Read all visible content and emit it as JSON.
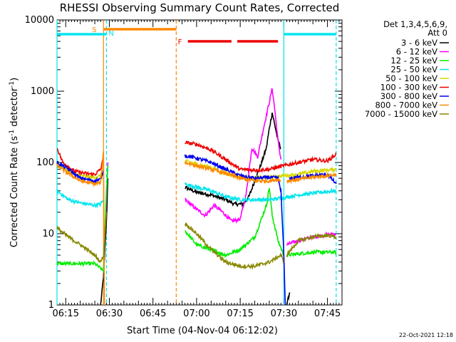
{
  "chart_data": {
    "type": "line",
    "title": "RHESSI Observing Summary Count Rates, Corrected",
    "xlabel": "Start Time (04-Nov-04 06:12:02)",
    "ylabel": "Corrected Count Rate (s",
    "ylabel_sup": "-1",
    "ylabel_mid": " detector",
    "ylabel_sup2": "-1",
    "ylabel_end": ")",
    "yscale": "log",
    "ylim": [
      1,
      10000
    ],
    "yticks": [
      {
        "v": 1,
        "label": "1"
      },
      {
        "v": 10,
        "label": "10"
      },
      {
        "v": 100,
        "label": "100"
      },
      {
        "v": 1000,
        "label": "1000"
      },
      {
        "v": 10000,
        "label": "10000"
      }
    ],
    "xlim": [
      "06:12",
      "07:50"
    ],
    "xticks": [
      "06:15",
      "06:30",
      "06:45",
      "07:00",
      "07:15",
      "07:30",
      "07:45"
    ],
    "timestamp": "22-Oct-2021 12:18",
    "legend": {
      "position": "right",
      "header": [
        "Det 1,3,4,5,6,9,",
        "Att 0"
      ],
      "entries": [
        {
          "label": "3 - 6 keV",
          "color": "#000000"
        },
        {
          "label": "6 - 12 keV",
          "color": "#ff00ff"
        },
        {
          "label": "12 - 25 keV",
          "color": "#00ee00"
        },
        {
          "label": "25 - 50 keV",
          "color": "#00e5ee"
        },
        {
          "label": "50 - 100 keV",
          "color": "#d8d800"
        },
        {
          "label": "100 - 300 keV",
          "color": "#ee0000"
        },
        {
          "label": "300 - 800 keV",
          "color": "#0000ee"
        },
        {
          "label": "800 - 7000 keV",
          "color": "#ff8800"
        },
        {
          "label": "7000 - 15000 keV",
          "color": "#888800"
        }
      ]
    },
    "flags": [
      {
        "label": "S",
        "color": "#ff8800",
        "segments": [
          [
            "06:28",
            "06:53"
          ]
        ]
      },
      {
        "label": "N",
        "color": "#00e5ee",
        "segments": [
          [
            "06:12",
            "06:29"
          ],
          [
            "07:30",
            "07:48"
          ]
        ]
      },
      {
        "label": "F",
        "color": "#ee0000",
        "segments": [
          [
            "06:57",
            "07:12"
          ],
          [
            "07:14",
            "07:28"
          ]
        ]
      }
    ],
    "markers": [
      {
        "t": "06:12",
        "color": "#00e5ee",
        "style": "solid"
      },
      {
        "t": "06:28",
        "color": "#ff8800",
        "style": "solid"
      },
      {
        "t": "06:29",
        "color": "#00e5ee",
        "style": "dashed"
      },
      {
        "t": "06:53",
        "color": "#ff8800",
        "style": "dashed"
      },
      {
        "t": "07:30",
        "color": "#00e5ee",
        "style": "solid"
      },
      {
        "t": "07:48",
        "color": "#00e5ee",
        "style": "dashed"
      }
    ],
    "series": [
      {
        "name": "3 - 6 keV",
        "color": "#000000",
        "segments": [
          [
            [
              "06:27",
              1
            ],
            [
              "06:28",
              2.5
            ],
            [
              "06:29",
              15
            ],
            [
              "06:29.5",
              60
            ]
          ],
          [
            [
              "06:56",
              45
            ],
            [
              "07:00",
              38
            ],
            [
              "07:05",
              35
            ],
            [
              "07:10",
              30
            ],
            [
              "07:13",
              26
            ],
            [
              "07:16",
              26
            ],
            [
              "07:18",
              33
            ],
            [
              "07:20",
              55
            ],
            [
              "07:22",
              90
            ],
            [
              "07:24",
              160
            ],
            [
              "07:25",
              300
            ],
            [
              "07:26",
              500
            ],
            [
              "07:27",
              320
            ],
            [
              "07:28",
              200
            ],
            [
              "07:29",
              160
            ]
          ],
          [
            [
              "07:31",
              1
            ],
            [
              "07:32",
              1.5
            ]
          ]
        ]
      },
      {
        "name": "6 - 12 keV",
        "color": "#ff00ff",
        "segments": [
          [
            [
              "06:28",
              3
            ],
            [
              "06:29",
              30
            ],
            [
              "06:29.5",
              100
            ]
          ],
          [
            [
              "06:56",
              30
            ],
            [
              "07:00",
              22
            ],
            [
              "07:03",
              18
            ],
            [
              "07:06",
              25
            ],
            [
              "07:09",
              20
            ],
            [
              "07:12",
              15
            ],
            [
              "07:15",
              16
            ],
            [
              "07:17",
              35
            ],
            [
              "07:19",
              160
            ],
            [
              "07:21",
              120
            ],
            [
              "07:23",
              300
            ],
            [
              "07:25",
              700
            ],
            [
              "07:26",
              1100
            ],
            [
              "07:27",
              500
            ],
            [
              "07:28",
              200
            ],
            [
              "07:29",
              110
            ]
          ],
          [
            [
              "07:31",
              7
            ],
            [
              "07:35",
              8
            ],
            [
              "07:40",
              9
            ],
            [
              "07:48",
              10
            ]
          ]
        ]
      },
      {
        "name": "12 - 25 keV",
        "color": "#00ee00",
        "segments": [
          [
            [
              "06:12",
              3.8
            ],
            [
              "06:20",
              3.8
            ],
            [
              "06:25",
              3.8
            ],
            [
              "06:28",
              3
            ],
            [
              "06:29",
              40
            ],
            [
              "06:29.5",
              90
            ]
          ],
          [
            [
              "06:56",
              11
            ],
            [
              "07:00",
              7
            ],
            [
              "07:05",
              6
            ],
            [
              "07:10",
              5
            ],
            [
              "07:15",
              6
            ],
            [
              "07:20",
              9
            ],
            [
              "07:24",
              25
            ],
            [
              "07:25",
              45
            ],
            [
              "07:26",
              18
            ],
            [
              "07:28",
              8
            ],
            [
              "07:30",
              5
            ]
          ],
          [
            [
              "07:31",
              5
            ],
            [
              "07:40",
              5.5
            ],
            [
              "07:48",
              5.5
            ]
          ]
        ]
      },
      {
        "name": "25 - 50 keV",
        "color": "#00e5ee",
        "segments": [
          [
            [
              "06:12",
              40
            ],
            [
              "06:16",
              30
            ],
            [
              "06:20",
              27
            ],
            [
              "06:25",
              25
            ],
            [
              "06:27",
              26
            ],
            [
              "06:28",
              30
            ]
          ],
          [
            [
              "06:56",
              50
            ],
            [
              "07:00",
              45
            ],
            [
              "07:05",
              40
            ],
            [
              "07:10",
              33
            ],
            [
              "07:15",
              30
            ],
            [
              "07:20",
              30
            ],
            [
              "07:25",
              30
            ],
            [
              "07:30",
              32
            ],
            [
              "07:35",
              35
            ],
            [
              "07:40",
              37
            ],
            [
              "07:45",
              39
            ],
            [
              "07:48",
              40
            ]
          ]
        ]
      },
      {
        "name": "50 - 100 keV",
        "color": "#d8d800",
        "segments": [
          [
            [
              "06:12",
              95
            ],
            [
              "06:16",
              75
            ],
            [
              "06:20",
              65
            ],
            [
              "06:25",
              62
            ],
            [
              "06:27",
              65
            ],
            [
              "06:28",
              75
            ]
          ],
          [
            [
              "06:56",
              105
            ],
            [
              "07:00",
              95
            ],
            [
              "07:05",
              85
            ],
            [
              "07:10",
              70
            ],
            [
              "07:15",
              62
            ],
            [
              "07:20",
              60
            ],
            [
              "07:25",
              62
            ],
            [
              "07:30",
              65
            ],
            [
              "07:35",
              68
            ],
            [
              "07:40",
              75
            ],
            [
              "07:45",
              78
            ],
            [
              "07:48",
              80
            ]
          ]
        ]
      },
      {
        "name": "100 - 300 keV",
        "color": "#ee0000",
        "segments": [
          [
            [
              "06:12",
              160
            ],
            [
              "06:14",
              100
            ],
            [
              "06:18",
              75
            ],
            [
              "06:22",
              70
            ],
            [
              "06:25",
              68
            ],
            [
              "06:27",
              80
            ],
            [
              "06:28",
              120
            ]
          ],
          [
            [
              "06:56",
              190
            ],
            [
              "07:00",
              180
            ],
            [
              "07:05",
              150
            ],
            [
              "07:10",
              110
            ],
            [
              "07:15",
              80
            ],
            [
              "07:20",
              78
            ],
            [
              "07:25",
              80
            ],
            [
              "07:30",
              90
            ],
            [
              "07:35",
              100
            ],
            [
              "07:40",
              110
            ],
            [
              "07:45",
              105
            ],
            [
              "07:48",
              130
            ]
          ]
        ]
      },
      {
        "name": "300 - 800 keV",
        "color": "#0000ee",
        "segments": [
          [
            [
              "06:12",
              100
            ],
            [
              "06:16",
              80
            ],
            [
              "06:20",
              60
            ],
            [
              "06:25",
              55
            ],
            [
              "06:27",
              58
            ],
            [
              "06:28",
              80
            ]
          ],
          [
            [
              "06:56",
              125
            ],
            [
              "07:00",
              115
            ],
            [
              "07:05",
              100
            ],
            [
              "07:10",
              80
            ],
            [
              "07:15",
              65
            ],
            [
              "07:20",
              60
            ],
            [
              "07:25",
              62
            ],
            [
              "07:28",
              60
            ],
            [
              "07:29",
              40
            ],
            [
              "07:30",
              5
            ],
            [
              "07:30.5",
              1
            ]
          ],
          [
            [
              "07:32",
              60
            ],
            [
              "07:40",
              65
            ],
            [
              "07:45",
              68
            ],
            [
              "07:48",
              50
            ]
          ]
        ]
      },
      {
        "name": "800 - 7000 keV",
        "color": "#ff8800",
        "segments": [
          [
            [
              "06:12",
              90
            ],
            [
              "06:16",
              70
            ],
            [
              "06:20",
              55
            ],
            [
              "06:25",
              50
            ],
            [
              "06:27",
              52
            ],
            [
              "06:28",
              140
            ],
            [
              "06:28.3",
              1
            ]
          ],
          [
            [
              "06:56",
              100
            ],
            [
              "07:00",
              90
            ],
            [
              "07:05",
              80
            ],
            [
              "07:10",
              70
            ],
            [
              "07:15",
              60
            ],
            [
              "07:20",
              55
            ],
            [
              "07:25",
              55
            ],
            [
              "07:28",
              58
            ],
            [
              "07:29",
              55
            ]
          ],
          [
            [
              "07:31",
              55
            ],
            [
              "07:40",
              62
            ],
            [
              "07:45",
              65
            ],
            [
              "07:48",
              68
            ]
          ]
        ]
      },
      {
        "name": "7000 - 15000 keV",
        "color": "#888800",
        "segments": [
          [
            [
              "06:12",
              12
            ],
            [
              "06:16",
              9
            ],
            [
              "06:20",
              7
            ],
            [
              "06:25",
              5
            ],
            [
              "06:27",
              4
            ],
            [
              "06:28",
              5
            ],
            [
              "06:29",
              20
            ]
          ],
          [
            [
              "06:56",
              14
            ],
            [
              "07:00",
              10
            ],
            [
              "07:05",
              6
            ],
            [
              "07:10",
              4
            ],
            [
              "07:15",
              3.5
            ],
            [
              "07:20",
              3.5
            ],
            [
              "07:25",
              4
            ],
            [
              "07:29",
              5
            ],
            [
              "07:30",
              4
            ]
          ],
          [
            [
              "07:31",
              5
            ],
            [
              "07:35",
              8
            ],
            [
              "07:40",
              9
            ],
            [
              "07:45",
              9.5
            ],
            [
              "07:48",
              9
            ]
          ]
        ]
      }
    ]
  }
}
